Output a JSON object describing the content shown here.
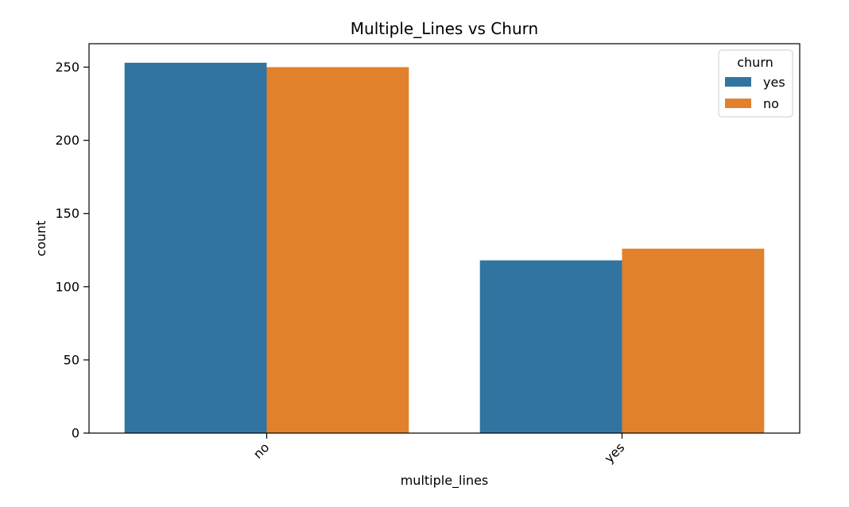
{
  "chart_data": {
    "type": "bar",
    "title": "Multiple_Lines vs Churn",
    "xlabel": "multiple_lines",
    "ylabel": "count",
    "categories": [
      "no",
      "yes"
    ],
    "series": [
      {
        "name": "yes",
        "color": "#3274a1",
        "values": [
          253,
          118
        ]
      },
      {
        "name": "no",
        "color": "#e1812c",
        "values": [
          250,
          126
        ]
      }
    ],
    "ylim": [
      0,
      266
    ],
    "yticks": [
      0,
      50,
      100,
      150,
      200,
      250
    ],
    "legend": {
      "title": "churn",
      "placement": "top-right"
    },
    "grid": false
  }
}
